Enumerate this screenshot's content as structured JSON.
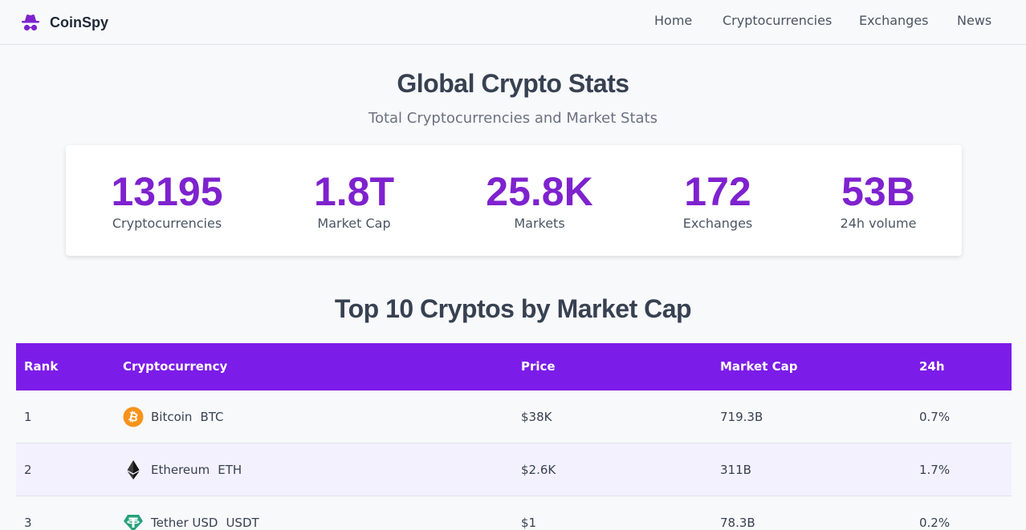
{
  "nav": {
    "brand": "CoinSpy",
    "brand_icon": "spy-hat-icon",
    "links": [
      "Home",
      "Cryptocurrencies",
      "Exchanges",
      "News"
    ]
  },
  "hero": {
    "title": "Global Crypto Stats",
    "subtitle": "Total Cryptocurrencies and Market Stats"
  },
  "stats": [
    {
      "value": "13195",
      "label": "Cryptocurrencies"
    },
    {
      "value": "1.8T",
      "label": "Market Cap"
    },
    {
      "value": "25.8K",
      "label": "Markets"
    },
    {
      "value": "172",
      "label": "Exchanges"
    },
    {
      "value": "53B",
      "label": "24h volume"
    }
  ],
  "table": {
    "title": "Top 10 Cryptos by Market Cap",
    "headers": {
      "rank": "Rank",
      "name": "Cryptocurrency",
      "price": "Price",
      "cap": "Market Cap",
      "change": "24h"
    },
    "rows": [
      {
        "rank": "1",
        "name": "Bitcoin",
        "symbol": "BTC",
        "icon": "bitcoin-icon",
        "price": "$38K",
        "cap": "719.3B",
        "change": "0.7%"
      },
      {
        "rank": "2",
        "name": "Ethereum",
        "symbol": "ETH",
        "icon": "ethereum-icon",
        "price": "$2.6K",
        "cap": "311B",
        "change": "1.7%"
      },
      {
        "rank": "3",
        "name": "Tether USD",
        "symbol": "USDT",
        "icon": "tether-icon",
        "price": "$1",
        "cap": "78.3B",
        "change": "0.2%"
      }
    ]
  },
  "colors": {
    "accent": "#7e22ce",
    "header_bg": "#7c1ce8",
    "bitcoin": "#f7931a",
    "tether": "#26a17b"
  }
}
